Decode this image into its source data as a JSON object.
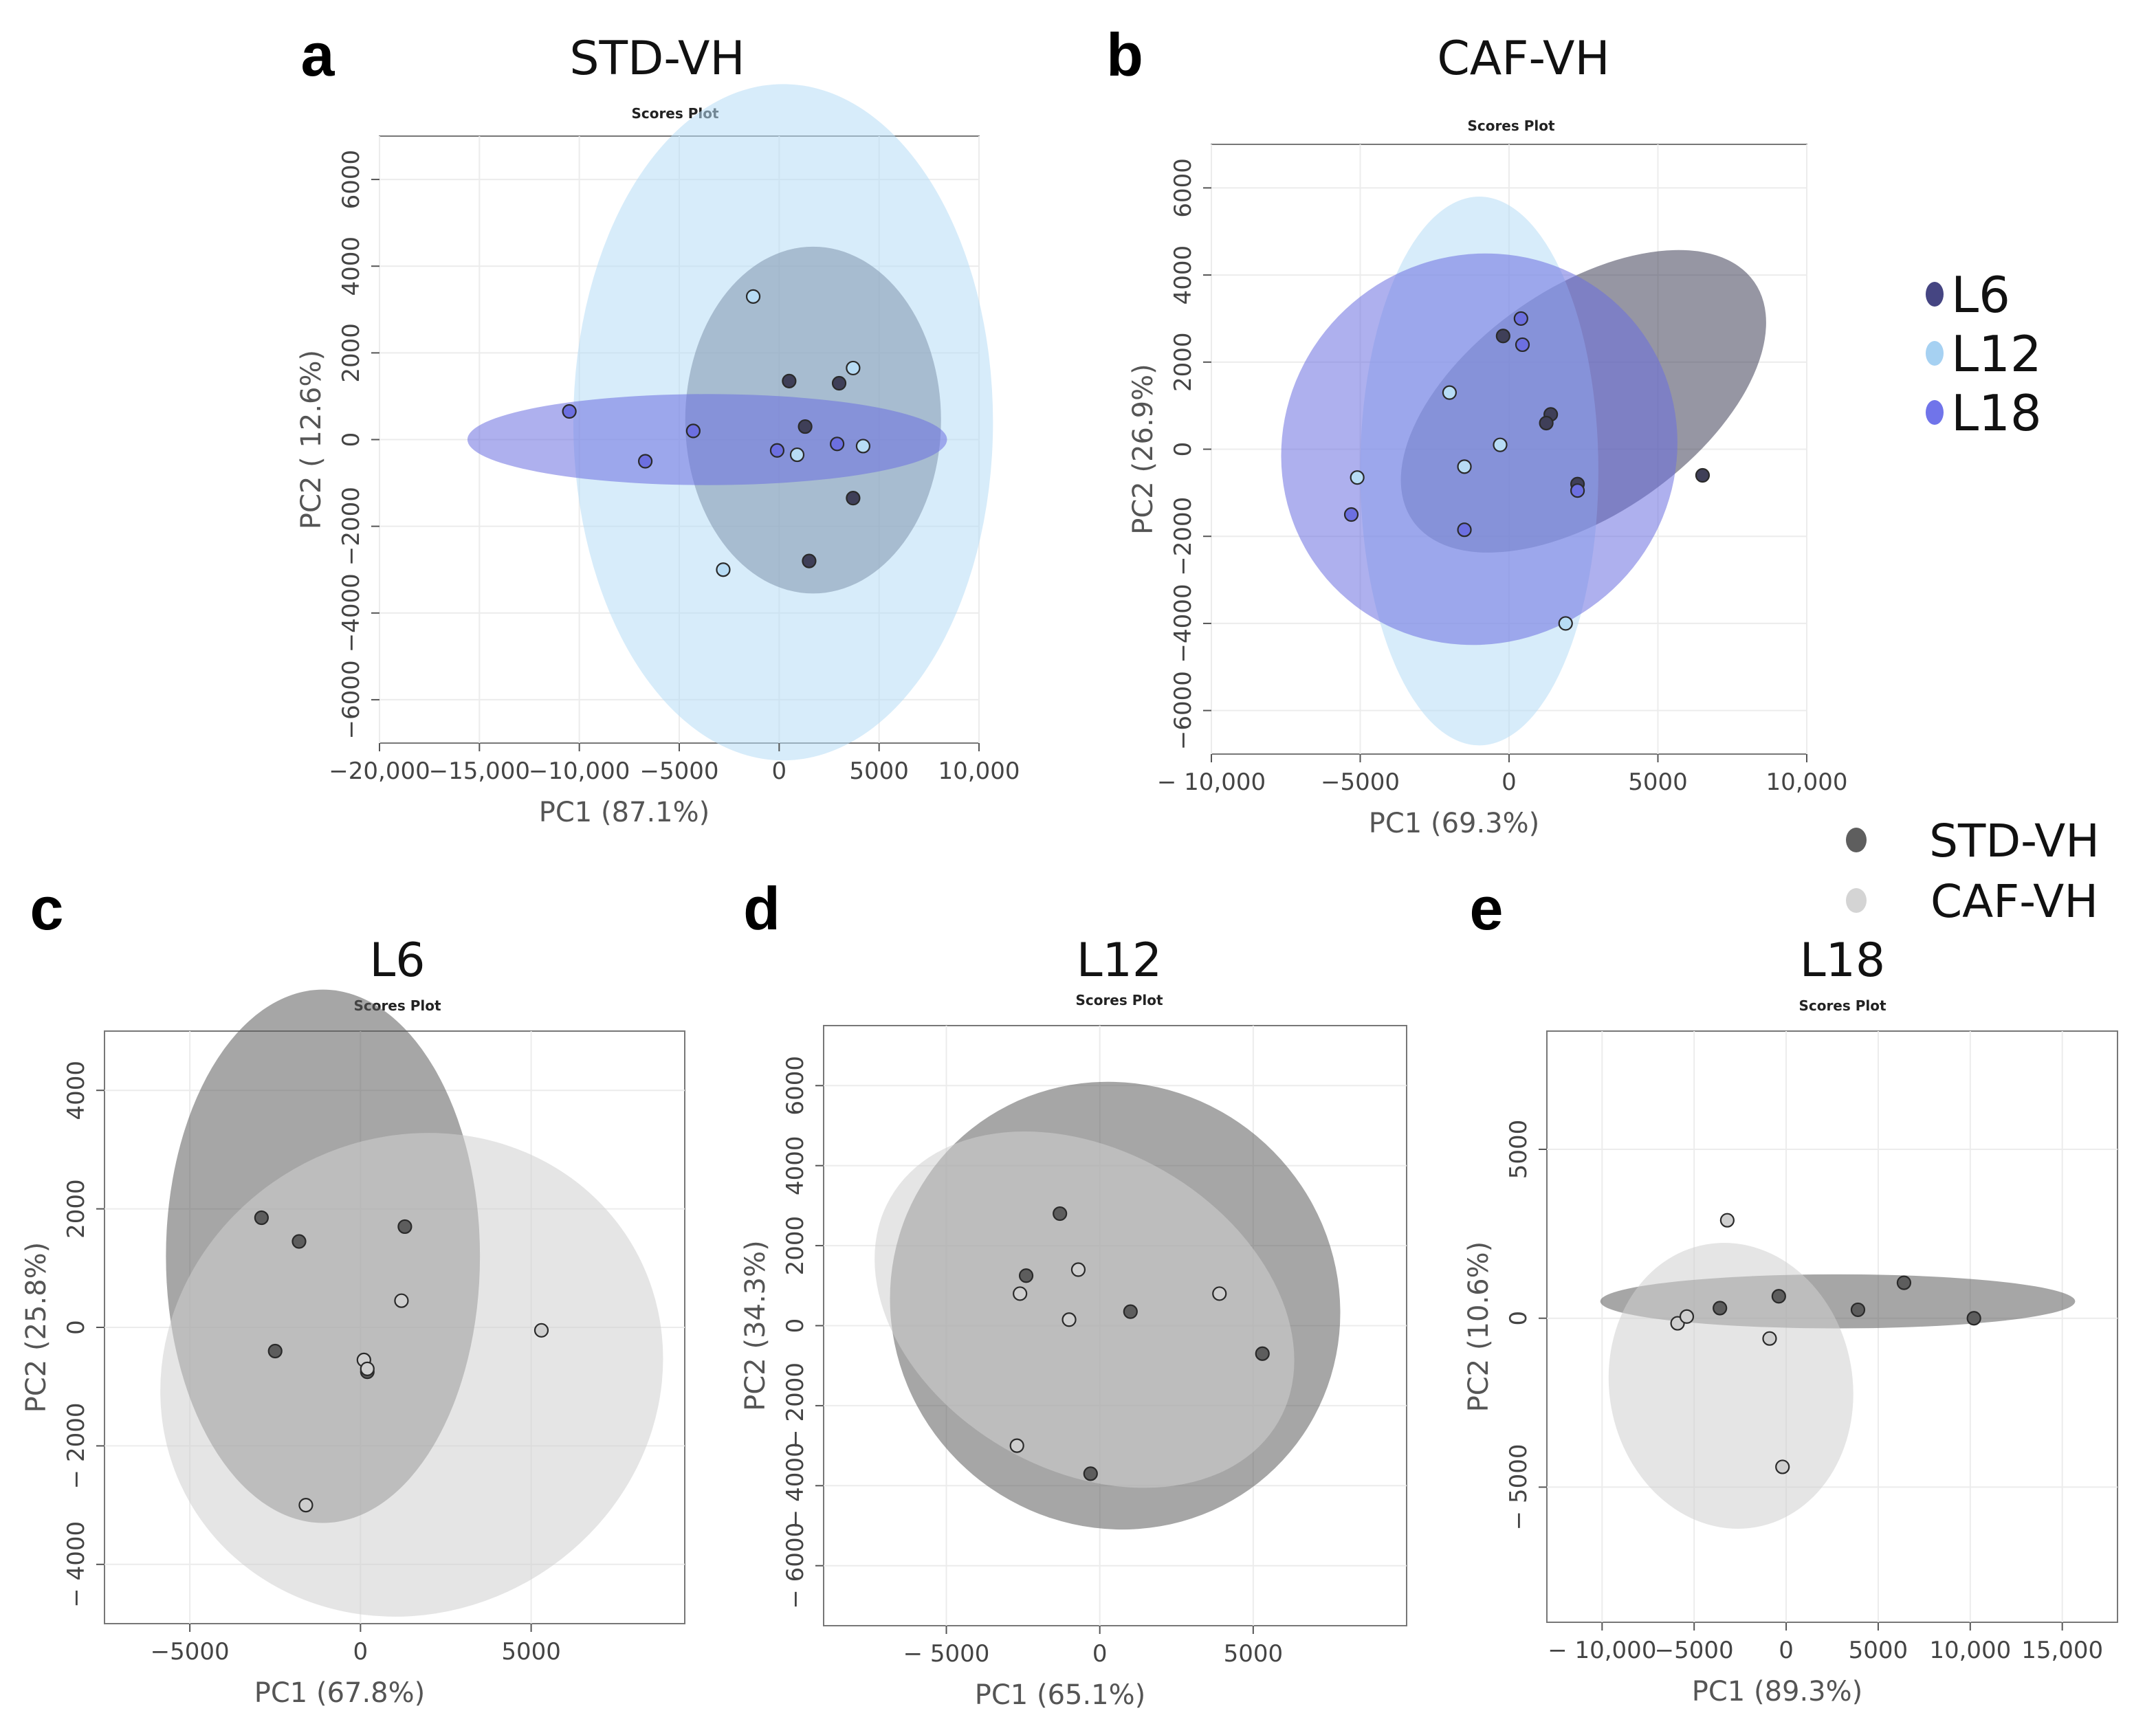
{
  "chart_data": [
    {
      "id": "a",
      "letter": "a",
      "type": "scatter",
      "title": "STD-VH",
      "subtitle": "Scores Plot",
      "xlabel": "PC1 (87.1%)",
      "ylabel": "PC2 ( 12.6%)",
      "xlim": [
        -20000,
        10000
      ],
      "ylim": [
        -7000,
        7000
      ],
      "xticks": [
        -20000,
        -15000,
        -10000,
        -5000,
        0,
        5000,
        10000
      ],
      "xtick_labels": [
        "−20,000",
        "−15,000",
        "−10,000",
        "−5000",
        "0",
        "5000",
        "10,000"
      ],
      "yticks": [
        -6000,
        -4000,
        -2000,
        0,
        2000,
        4000,
        6000
      ],
      "ytick_labels": [
        "−6000",
        "−4000",
        "−2000",
        "0",
        "2000",
        "4000",
        "6000"
      ],
      "series": [
        {
          "name": "L6",
          "color": "#3f3f58",
          "ellipse": {
            "cx": 1700,
            "cy": 450,
            "rx": 4000,
            "ry": 6400,
            "angle": 90
          },
          "points": [
            [
              500,
              1350
            ],
            [
              1300,
              300
            ],
            [
              3000,
              1300
            ],
            [
              3700,
              -1350
            ],
            [
              1500,
              -2800
            ]
          ]
        },
        {
          "name": "L12",
          "color": "#b7dcf5",
          "ellipse": {
            "cx": 200,
            "cy": 400,
            "rx": 7800,
            "ry": 10500,
            "angle": 90
          },
          "points": [
            [
              -1300,
              3300
            ],
            [
              3700,
              1650
            ],
            [
              4200,
              -150
            ],
            [
              900,
              -350
            ],
            [
              -2800,
              -3000
            ]
          ]
        },
        {
          "name": "L18",
          "color": "#6c6fe0",
          "ellipse": {
            "cx": -3600,
            "cy": 0,
            "rx": 12000,
            "ry": 1050,
            "angle": 0
          },
          "points": [
            [
              -10500,
              650
            ],
            [
              -4300,
              200
            ],
            [
              -6700,
              -500
            ],
            [
              -100,
              -250
            ],
            [
              2900,
              -100
            ]
          ]
        }
      ]
    },
    {
      "id": "b",
      "letter": "b",
      "type": "scatter",
      "title": "CAF-VH",
      "subtitle": "Scores Plot",
      "xlabel": "PC1 (69.3%)",
      "ylabel": "PC2 (26.9%)",
      "xlim": [
        -10000,
        10000
      ],
      "ylim": [
        -7000,
        7000
      ],
      "xticks": [
        -10000,
        -5000,
        0,
        5000,
        10000
      ],
      "xtick_labels": [
        "− 10,000",
        "−5000",
        "0",
        "5000",
        "10,000"
      ],
      "yticks": [
        -6000,
        -4000,
        -2000,
        0,
        2000,
        4000,
        6000
      ],
      "ytick_labels": [
        "−6000",
        "−4000",
        "−2000",
        "0",
        "2000",
        "4000",
        "6000"
      ],
      "series": [
        {
          "name": "L6",
          "color": "#3f3f58",
          "ellipse": {
            "cx": 2500,
            "cy": 1100,
            "rx": 7000,
            "ry": 2600,
            "angle": -35
          },
          "points": [
            [
              -200,
              2600
            ],
            [
              1400,
              800
            ],
            [
              1250,
              600
            ],
            [
              2300,
              -800
            ],
            [
              6500,
              -600
            ]
          ]
        },
        {
          "name": "L12",
          "color": "#b7dcf5",
          "ellipse": {
            "cx": -1000,
            "cy": -500,
            "rx": 6300,
            "ry": 4000,
            "angle": 90
          },
          "points": [
            [
              -2000,
              1300
            ],
            [
              -5100,
              -650
            ],
            [
              -1500,
              -400
            ],
            [
              -300,
              100
            ],
            [
              1900,
              -4000
            ]
          ]
        },
        {
          "name": "L18",
          "color": "#6c6fe0",
          "ellipse": {
            "cx": -1000,
            "cy": 0,
            "rx": 6500,
            "ry": 4600,
            "angle": 55
          },
          "points": [
            [
              400,
              3000
            ],
            [
              450,
              2400
            ],
            [
              -5300,
              -1500
            ],
            [
              -1500,
              -1850
            ],
            [
              2300,
              -950
            ]
          ]
        }
      ]
    },
    {
      "id": "c",
      "letter": "c",
      "type": "scatter",
      "title": "L6",
      "subtitle": "Scores Plot",
      "xlabel": "PC1 (67.8%)",
      "ylabel": "PC2 (25.8%)",
      "xlim": [
        -7500,
        9500
      ],
      "ylim": [
        -5000,
        5000
      ],
      "xticks": [
        -5000,
        0,
        5000
      ],
      "xtick_labels": [
        "−5000",
        "0",
        "5000"
      ],
      "yticks": [
        -4000,
        -2000,
        0,
        2000,
        4000
      ],
      "ytick_labels": [
        "− 4000",
        "− 2000",
        "0",
        "2000",
        "4000"
      ],
      "series": [
        {
          "name": "STD-VH",
          "color": "#5d5d5d",
          "ellipse": {
            "cx": -1100,
            "cy": 1200,
            "rx": 4500,
            "ry": 4600,
            "angle": 90
          },
          "points": [
            [
              -2900,
              1850
            ],
            [
              -1800,
              1450
            ],
            [
              -2500,
              -400
            ],
            [
              200,
              -750
            ],
            [
              1300,
              1700
            ]
          ]
        },
        {
          "name": "CAF-VH",
          "color": "#cfcfcf",
          "ellipse": {
            "cx": 1500,
            "cy": -800,
            "rx": 7500,
            "ry": 4000,
            "angle": -30
          },
          "points": [
            [
              1200,
              450
            ],
            [
              100,
              -550
            ],
            [
              5300,
              -50
            ],
            [
              -1600,
              -3000
            ],
            [
              200,
              -700
            ]
          ]
        }
      ]
    },
    {
      "id": "d",
      "letter": "d",
      "type": "scatter",
      "title": "L12",
      "subtitle": "Scores Plot",
      "xlabel": "PC1 (65.1%)",
      "ylabel": "PC2 (34.3%)",
      "xlim": [
        -9000,
        10000
      ],
      "ylim": [
        -7500,
        7500
      ],
      "xticks": [
        -5000,
        0,
        5000
      ],
      "xtick_labels": [
        "− 5000",
        "0",
        "5000"
      ],
      "yticks": [
        -6000,
        -4000,
        -2000,
        0,
        2000,
        4000,
        6000
      ],
      "ytick_labels": [
        "− 6000",
        "− 4000",
        "− 2000",
        "0",
        "2000",
        "4000",
        "6000"
      ],
      "series": [
        {
          "name": "STD-VH",
          "color": "#5d5d5d",
          "ellipse": {
            "cx": 500,
            "cy": 500,
            "rx": 7200,
            "ry": 5700,
            "angle": -50
          },
          "points": [
            [
              -1300,
              2800
            ],
            [
              -2400,
              1250
            ],
            [
              1000,
              350
            ],
            [
              -300,
              -3700
            ],
            [
              5300,
              -700
            ]
          ]
        },
        {
          "name": "CAF-VH",
          "color": "#cfcfcf",
          "ellipse": {
            "cx": -500,
            "cy": 400,
            "rx": 7300,
            "ry": 4000,
            "angle": 30
          },
          "points": [
            [
              -700,
              1400
            ],
            [
              -2600,
              800
            ],
            [
              -1000,
              150
            ],
            [
              3900,
              800
            ],
            [
              -2700,
              -3000
            ]
          ]
        }
      ]
    },
    {
      "id": "e",
      "letter": "e",
      "type": "scatter",
      "title": "L18",
      "subtitle": "Scores Plot",
      "xlabel": "PC1 (89.3%)",
      "ylabel": "PC2 (10.6%)",
      "xlim": [
        -13000,
        18000
      ],
      "ylim": [
        -9000,
        8500
      ],
      "xticks": [
        -10000,
        -5000,
        0,
        5000,
        10000,
        15000
      ],
      "xtick_labels": [
        "− 10,000",
        "−5000",
        "0",
        "5000",
        "10,000",
        "15,000"
      ],
      "yticks": [
        -5000,
        0,
        5000
      ],
      "ytick_labels": [
        "− 5000",
        "0",
        "5000"
      ],
      "series": [
        {
          "name": "STD-VH",
          "color": "#5d5d5d",
          "ellipse": {
            "cx": 2800,
            "cy": 500,
            "rx": 12900,
            "ry": 800,
            "angle": 0
          },
          "points": [
            [
              -3600,
              300
            ],
            [
              -400,
              650
            ],
            [
              3900,
              250
            ],
            [
              6400,
              1050
            ],
            [
              10200,
              0
            ]
          ]
        },
        {
          "name": "CAF-VH",
          "color": "#cfcfcf",
          "ellipse": {
            "cx": -3000,
            "cy": -2000,
            "rx": 7800,
            "ry": 3600,
            "angle": 80
          },
          "points": [
            [
              -3200,
              2900
            ],
            [
              -5900,
              -150
            ],
            [
              -5400,
              50
            ],
            [
              -900,
              -600
            ],
            [
              -200,
              -4400
            ]
          ]
        }
      ]
    }
  ],
  "legends": {
    "layers": {
      "items": [
        {
          "label": "L6",
          "color": "#454582"
        },
        {
          "label": "L12",
          "color": "#a6d1f2"
        },
        {
          "label": "L18",
          "color": "#7074ea"
        }
      ]
    },
    "diets": {
      "items": [
        {
          "label": "STD-VH",
          "color": "#5e5e5e"
        },
        {
          "label": "CAF-VH",
          "color": "#d4d4d4"
        }
      ]
    }
  }
}
